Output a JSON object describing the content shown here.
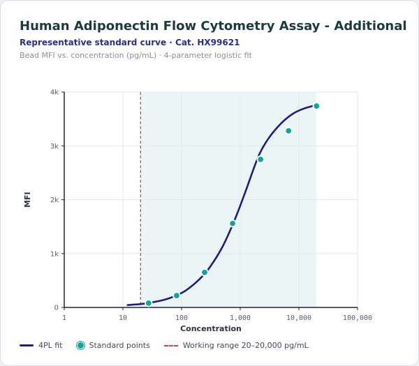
{
  "header": {
    "title": "Human Adiponectin Flow Cytometry Assay - Additional",
    "subtitle": "Representative standard curve · Cat. HX99621",
    "note": "Bead MFI vs. concentration (pg/mL) · 4-parameter logistic fit"
  },
  "legend": {
    "fit": "4PL fit",
    "points": "Standard points",
    "range": "Working range 20–20,000 pg/mL"
  },
  "colors": {
    "fit_line": "#221e76",
    "points": "#12a39c",
    "range_band": "#eaf6f6",
    "range_marker": "#c74a4a"
  },
  "chart_data": {
    "type": "scatter",
    "xlabel": "Concentration",
    "ylabel": "MFI",
    "x_scale": "log",
    "xlim": [
      1,
      100000
    ],
    "ylim": [
      0,
      4000
    ],
    "x_ticks": [
      1,
      10,
      100,
      1000,
      10000,
      100000
    ],
    "x_tick_labels": [
      "1",
      "10",
      "100",
      "1,000",
      "10,000",
      "100,000"
    ],
    "y_ticks": [
      0,
      1000,
      2000,
      3000,
      4000
    ],
    "y_tick_labels": [
      "0",
      "1k",
      "2k",
      "3k",
      "4k"
    ],
    "grid": true,
    "working_range": [
      20,
      20000
    ],
    "series": [
      {
        "name": "Standard points",
        "kind": "points",
        "x": [
          27.4,
          82.3,
          247,
          741,
          2222,
          6667,
          20000
        ],
        "y": [
          80,
          220,
          650,
          1560,
          2750,
          3280,
          3740
        ]
      },
      {
        "name": "4PL fit",
        "kind": "line",
        "x": [
          12,
          20,
          30,
          50,
          80,
          120,
          200,
          300,
          500,
          800,
          1200,
          2000,
          3000,
          5000,
          8000,
          12000,
          20000
        ],
        "y": [
          45,
          62,
          90,
          140,
          220,
          320,
          520,
          740,
          1130,
          1620,
          2120,
          2780,
          3130,
          3420,
          3600,
          3690,
          3760
        ]
      }
    ]
  }
}
